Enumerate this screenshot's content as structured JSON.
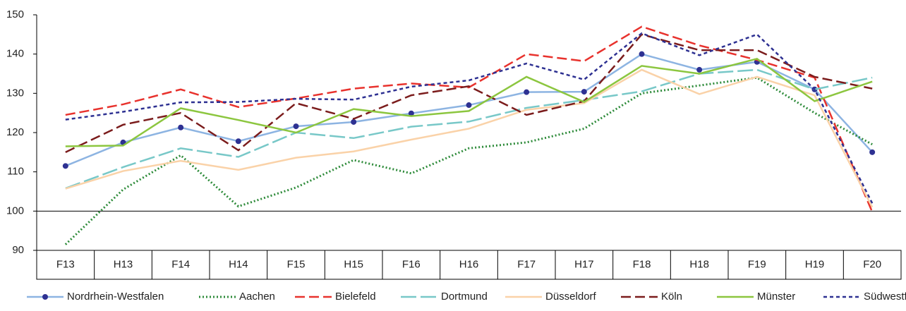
{
  "chart_data": {
    "type": "line",
    "categories": [
      "F13",
      "H13",
      "F14",
      "H14",
      "F15",
      "H15",
      "F16",
      "H16",
      "F17",
      "H17",
      "F18",
      "H18",
      "F19",
      "H19",
      "F20"
    ],
    "ylim": [
      90,
      150
    ],
    "yticks": [
      90,
      100,
      110,
      120,
      130,
      140,
      150
    ],
    "baseline": 100,
    "legend": "bottom",
    "series": [
      {
        "name": "Nordrhein-Westfalen",
        "color": "#8db4e2",
        "marker_color": "#2e3192",
        "dash": "solid",
        "marker": true,
        "values": [
          111.5,
          117.5,
          121.3,
          117.8,
          121.6,
          122.7,
          124.9,
          127,
          130.3,
          130.4,
          140,
          136,
          138,
          131,
          115
        ]
      },
      {
        "name": "Aachen",
        "color": "#2e8b3a",
        "dash": "dotted",
        "marker": false,
        "values": [
          91.5,
          105.5,
          114.2,
          101.2,
          106,
          113,
          109.6,
          116,
          117.5,
          121,
          130,
          132,
          134,
          125,
          117
        ]
      },
      {
        "name": "Bielefeld",
        "color": "#e8322d",
        "dash": "dashed",
        "marker": false,
        "values": [
          124.5,
          127.2,
          131,
          126.5,
          128.7,
          131.2,
          132.5,
          131.5,
          140,
          138.2,
          147,
          142.2,
          138.5,
          134,
          99.8
        ]
      },
      {
        "name": "Dortmund",
        "color": "#78c8c8",
        "dash": "long-dashed",
        "marker": false,
        "values": [
          105.8,
          111.2,
          116,
          113.8,
          120,
          118.6,
          121.5,
          122.8,
          126.3,
          128.3,
          130.5,
          135,
          136,
          131,
          134
        ]
      },
      {
        "name": "Düsseldorf",
        "color": "#fad2a8",
        "dash": "solid",
        "marker": false,
        "values": [
          105.7,
          110.2,
          112.8,
          110.5,
          113.6,
          115.2,
          118.2,
          121,
          125.8,
          127.5,
          136,
          129.8,
          134.2,
          129.5,
          101
        ]
      },
      {
        "name": "Köln",
        "color": "#7b1c1c",
        "dash": "dashed",
        "marker": false,
        "values": [
          115,
          122,
          125,
          115.5,
          127.5,
          123.5,
          129.5,
          131.8,
          124.5,
          128,
          145,
          141,
          141,
          134.2,
          131.2
        ]
      },
      {
        "name": "Münster",
        "color": "#8cc63f",
        "dash": "solid",
        "marker": false,
        "values": [
          116.5,
          116.7,
          126.2,
          123.2,
          120,
          126,
          124.2,
          125.5,
          134.2,
          127.8,
          137,
          135,
          138.8,
          128,
          133
        ]
      },
      {
        "name": "Südwestfalen",
        "color": "#2e3192",
        "dash": "short-dashed",
        "marker": false,
        "values": [
          123.3,
          125.3,
          127.7,
          127.8,
          128.6,
          128.4,
          131.7,
          133.3,
          137.6,
          133.5,
          145.3,
          139.7,
          145,
          131,
          102
        ]
      }
    ]
  }
}
